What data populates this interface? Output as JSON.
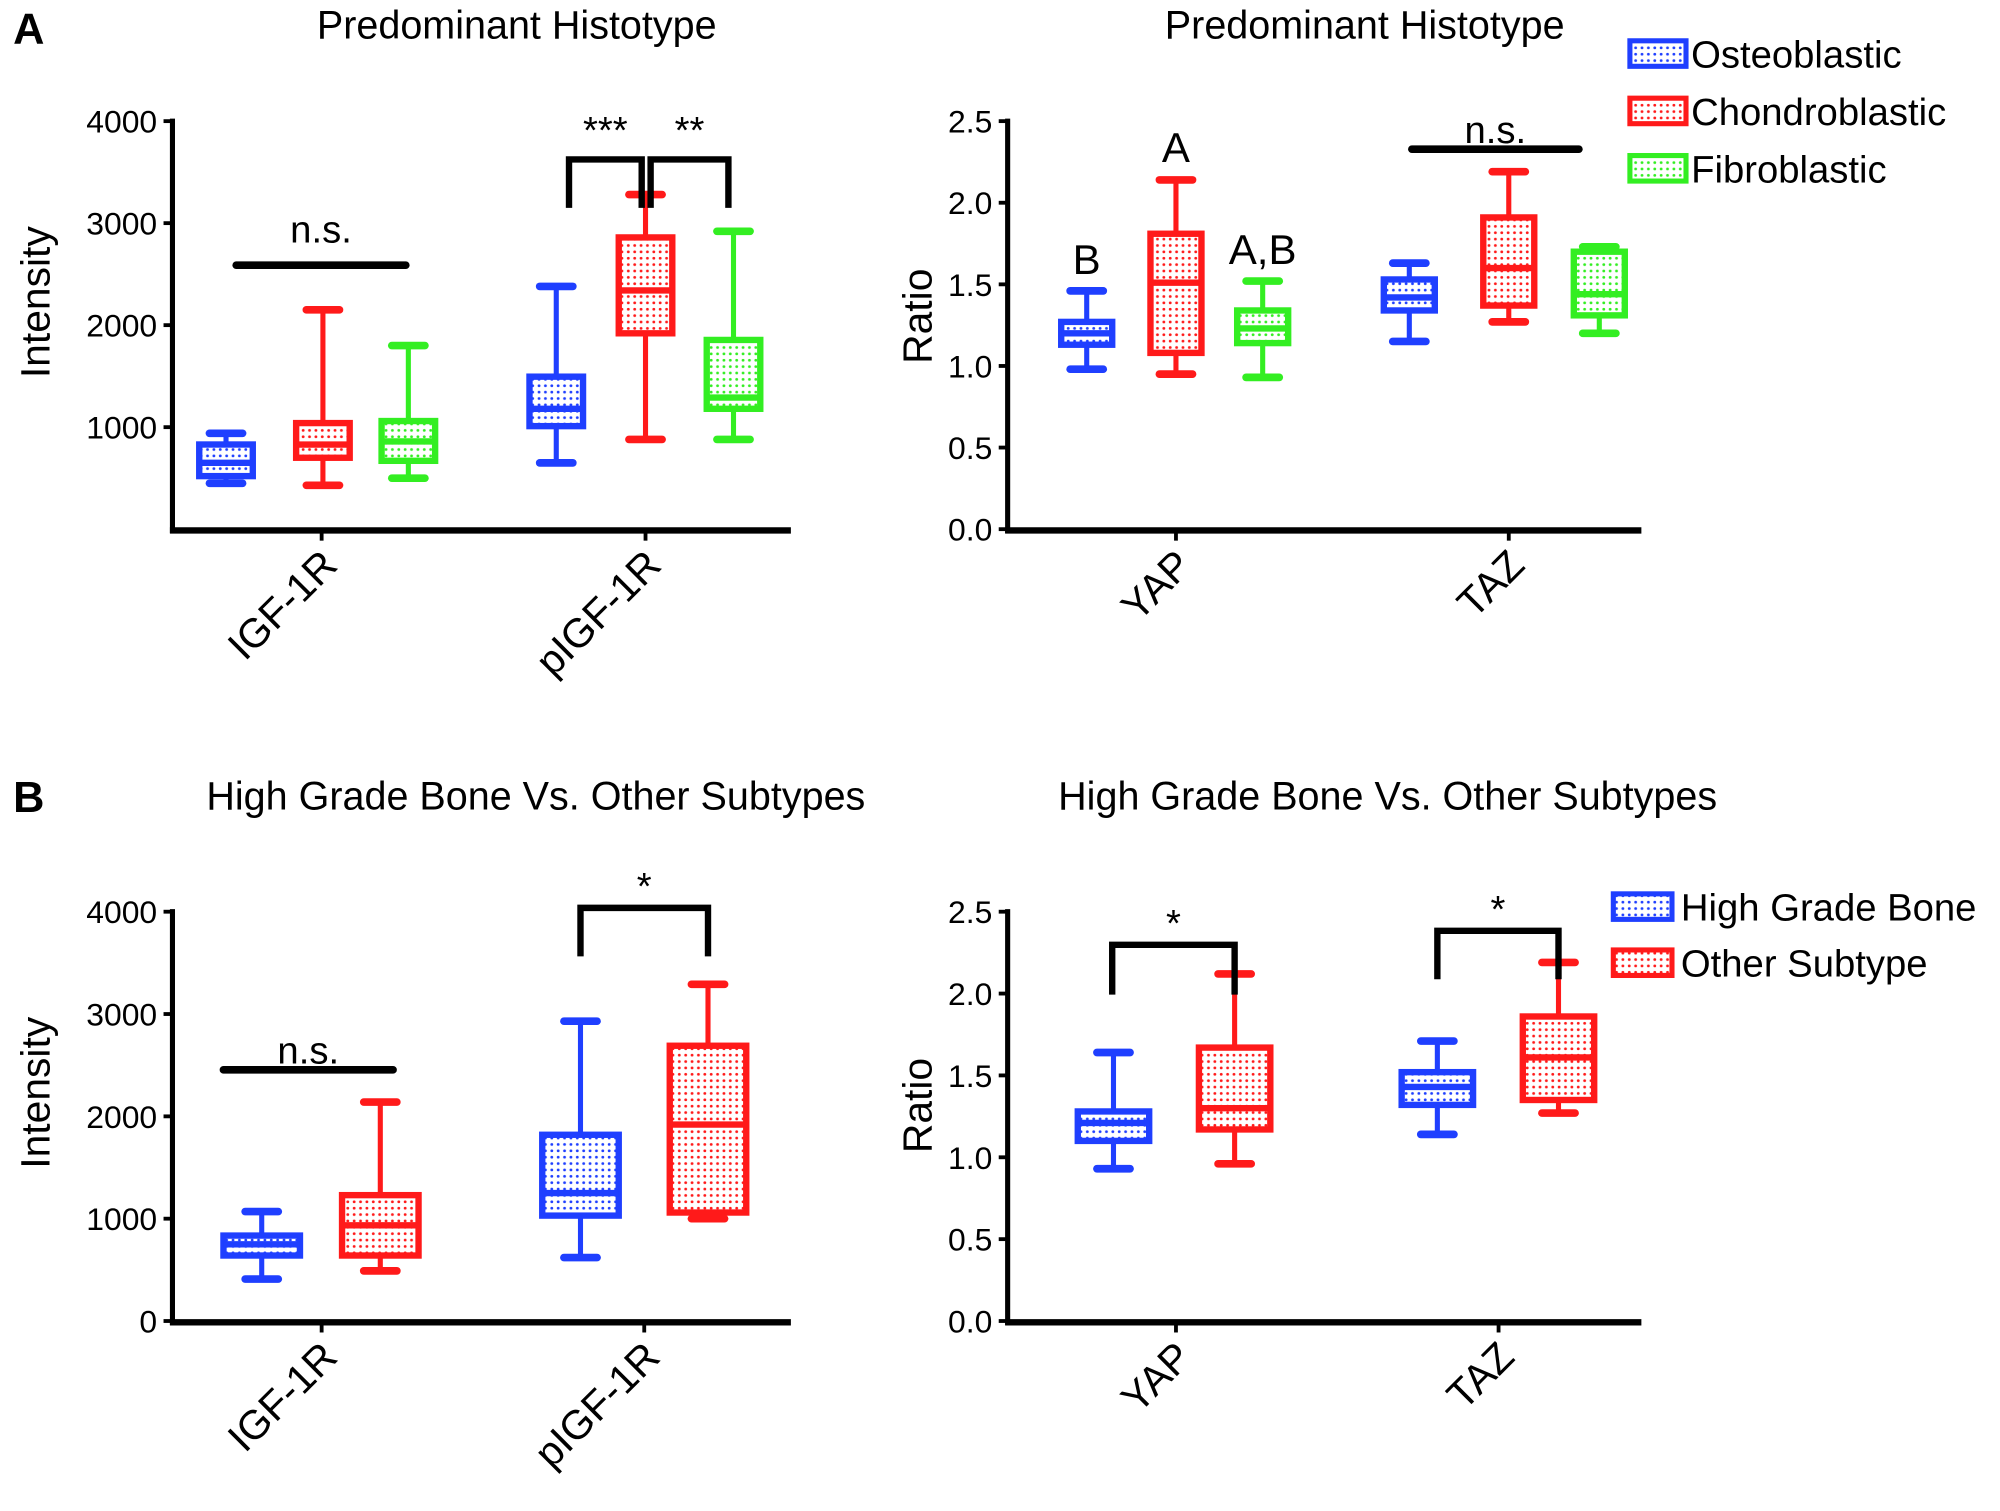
{
  "panel_labels": [
    "A",
    "B"
  ],
  "colors": {
    "Osteoblastic": "#1f3fff",
    "Chondroblastic": "#ff1a1a",
    "Fibroblastic": "#33ee22",
    "High Grade Bone": "#1f3fff",
    "Other Subtype": "#ff1a1a",
    "axis": "#000000"
  },
  "chart_data": [
    {
      "type": "box",
      "title": "Predominant Histotype",
      "ylabel": "Intensity",
      "ylim": [
        0,
        4000
      ],
      "yticks": [
        "1000",
        "2000",
        "3000",
        "4000"
      ],
      "categories": [
        "IGF-1R",
        "pIGF-1R"
      ],
      "series": [
        {
          "name": "Osteoblastic",
          "boxes": [
            {
              "min": 450,
              "q1": 520,
              "median": 650,
              "q3": 830,
              "max": 940
            },
            {
              "min": 650,
              "q1": 1010,
              "median": 1180,
              "q3": 1495,
              "max": 2380
            }
          ]
        },
        {
          "name": "Chondroblastic",
          "boxes": [
            {
              "min": 430,
              "q1": 700,
              "median": 830,
              "q3": 1040,
              "max": 2150
            },
            {
              "min": 880,
              "q1": 1920,
              "median": 2340,
              "q3": 2860,
              "max": 3280
            }
          ]
        },
        {
          "name": "Fibroblastic",
          "boxes": [
            {
              "min": 500,
              "q1": 670,
              "median": 860,
              "q3": 1060,
              "max": 1800
            },
            {
              "min": 880,
              "q1": 1180,
              "median": 1290,
              "q3": 1855,
              "max": 2920
            }
          ]
        }
      ],
      "annotations": [
        {
          "text": "n.s.",
          "category": "IGF-1R",
          "between": [
            "Osteoblastic",
            "Fibroblastic"
          ]
        },
        {
          "text": "***",
          "category": "pIGF-1R",
          "between": [
            "Osteoblastic",
            "Chondroblastic"
          ]
        },
        {
          "text": "**",
          "category": "pIGF-1R",
          "between": [
            "Chondroblastic",
            "Fibroblastic"
          ]
        }
      ]
    },
    {
      "type": "box",
      "title": "Predominant Histotype",
      "ylabel": "Ratio",
      "ylim": [
        0,
        2.5
      ],
      "yticks": [
        "0.0",
        "0.5",
        "1.0",
        "1.5",
        "2.0",
        "2.5"
      ],
      "categories": [
        "YAP",
        "TAZ"
      ],
      "legend": "top-right",
      "series": [
        {
          "name": "Osteoblastic",
          "boxes": [
            {
              "min": 0.98,
              "q1": 1.13,
              "median": 1.2,
              "q3": 1.27,
              "max": 1.46
            },
            {
              "min": 1.15,
              "q1": 1.34,
              "median": 1.42,
              "q3": 1.53,
              "max": 1.63
            }
          ]
        },
        {
          "name": "Chondroblastic",
          "boxes": [
            {
              "min": 0.95,
              "q1": 1.08,
              "median": 1.51,
              "q3": 1.81,
              "max": 2.14
            },
            {
              "min": 1.27,
              "q1": 1.37,
              "median": 1.6,
              "q3": 1.91,
              "max": 2.19
            }
          ]
        },
        {
          "name": "Fibroblastic",
          "boxes": [
            {
              "min": 0.93,
              "q1": 1.14,
              "median": 1.23,
              "q3": 1.34,
              "max": 1.52
            },
            {
              "min": 1.2,
              "q1": 1.31,
              "median": 1.44,
              "q3": 1.7,
              "max": 1.73
            }
          ]
        }
      ],
      "annotations": [
        {
          "text": "B",
          "category": "YAP",
          "series": "Osteoblastic"
        },
        {
          "text": "A",
          "category": "YAP",
          "series": "Chondroblastic"
        },
        {
          "text": "A,B",
          "category": "YAP",
          "series": "Fibroblastic"
        },
        {
          "text": "n.s.",
          "category": "TAZ",
          "between": [
            "Osteoblastic",
            "Fibroblastic"
          ]
        }
      ]
    },
    {
      "type": "box",
      "title": "High Grade Bone Vs. Other Subtypes",
      "ylabel": "Intensity",
      "ylim": [
        0,
        4000
      ],
      "yticks": [
        "0",
        "1000",
        "2000",
        "3000",
        "4000"
      ],
      "categories": [
        "IGF-1R",
        "pIGF-1R"
      ],
      "series": [
        {
          "name": "High Grade Bone",
          "boxes": [
            {
              "min": 410,
              "q1": 640,
              "median": 750,
              "q3": 835,
              "max": 1070
            },
            {
              "min": 620,
              "q1": 1030,
              "median": 1250,
              "q3": 1820,
              "max": 2930
            }
          ]
        },
        {
          "name": "Other Subtype",
          "boxes": [
            {
              "min": 490,
              "q1": 640,
              "median": 935,
              "q3": 1230,
              "max": 2140
            },
            {
              "min": 1000,
              "q1": 1060,
              "median": 1920,
              "q3": 2690,
              "max": 3290
            }
          ]
        }
      ],
      "annotations": [
        {
          "text": "n.s.",
          "category": "IGF-1R",
          "between": [
            "High Grade Bone",
            "Other Subtype"
          ]
        },
        {
          "text": "*",
          "category": "pIGF-1R",
          "between": [
            "High Grade Bone",
            "Other Subtype"
          ]
        }
      ]
    },
    {
      "type": "box",
      "title": "High Grade Bone Vs. Other Subtypes",
      "ylabel": "Ratio",
      "ylim": [
        0,
        2.5
      ],
      "yticks": [
        "0.0",
        "0.5",
        "1.0",
        "1.5",
        "2.0",
        "2.5"
      ],
      "categories": [
        "YAP",
        "TAZ"
      ],
      "legend": "top-right",
      "series": [
        {
          "name": "High Grade Bone",
          "boxes": [
            {
              "min": 0.93,
              "q1": 1.1,
              "median": 1.21,
              "q3": 1.28,
              "max": 1.64
            },
            {
              "min": 1.14,
              "q1": 1.32,
              "median": 1.43,
              "q3": 1.52,
              "max": 1.71
            }
          ]
        },
        {
          "name": "Other Subtype",
          "boxes": [
            {
              "min": 0.96,
              "q1": 1.17,
              "median": 1.3,
              "q3": 1.67,
              "max": 2.12
            },
            {
              "min": 1.27,
              "q1": 1.35,
              "median": 1.61,
              "q3": 1.86,
              "max": 2.19
            }
          ]
        }
      ],
      "annotations": [
        {
          "text": "*",
          "category": "YAP",
          "between": [
            "High Grade Bone",
            "Other Subtype"
          ]
        },
        {
          "text": "*",
          "category": "TAZ",
          "between": [
            "High Grade Bone",
            "Other Subtype"
          ]
        }
      ]
    }
  ]
}
